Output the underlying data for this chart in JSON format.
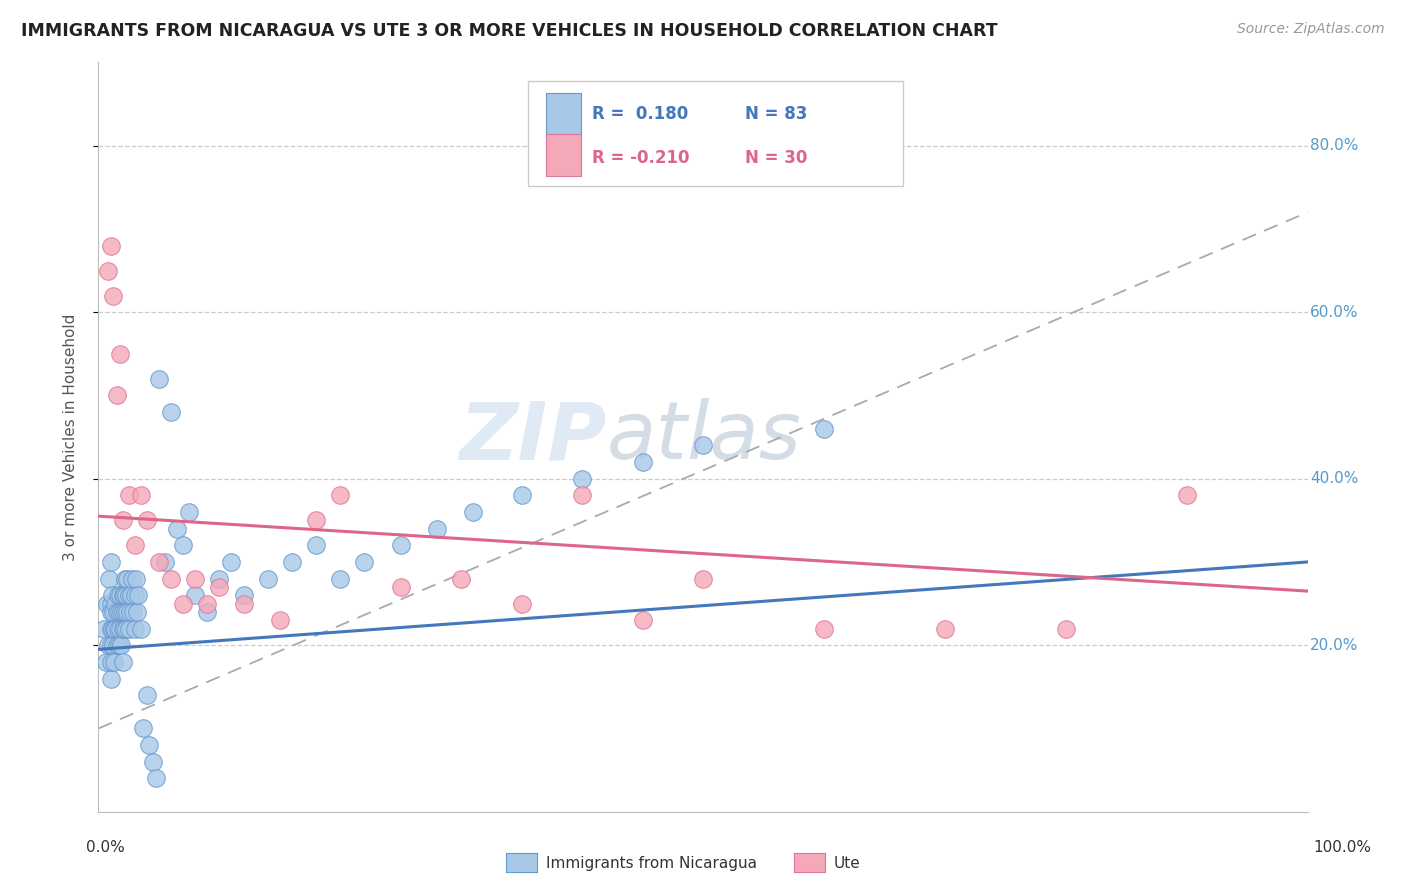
{
  "title": "IMMIGRANTS FROM NICARAGUA VS UTE 3 OR MORE VEHICLES IN HOUSEHOLD CORRELATION CHART",
  "source": "Source: ZipAtlas.com",
  "ylabel": "3 or more Vehicles in Household",
  "xlim": [
    0.0,
    1.0
  ],
  "ylim": [
    0.0,
    0.9
  ],
  "yticks": [
    0.2,
    0.4,
    0.6,
    0.8
  ],
  "ytick_labels": [
    "20.0%",
    "40.0%",
    "60.0%",
    "80.0%"
  ],
  "legend_r1": "R =  0.180",
  "legend_n1": "N = 83",
  "legend_r2": "R = -0.210",
  "legend_n2": "N = 30",
  "color_blue": "#a8c8e8",
  "color_pink": "#f4a8b8",
  "edge_blue": "#6699cc",
  "edge_pink": "#dd7799",
  "line_blue": "#4477bb",
  "line_pink": "#dd6688",
  "watermark_zip": "ZIP",
  "watermark_atlas": "atlas",
  "blue_scatter_x": [
    0.005,
    0.006,
    0.007,
    0.008,
    0.009,
    0.01,
    0.01,
    0.01,
    0.01,
    0.01,
    0.01,
    0.01,
    0.011,
    0.011,
    0.012,
    0.012,
    0.013,
    0.013,
    0.014,
    0.014,
    0.015,
    0.015,
    0.016,
    0.016,
    0.017,
    0.017,
    0.018,
    0.018,
    0.019,
    0.019,
    0.02,
    0.02,
    0.02,
    0.02,
    0.021,
    0.021,
    0.022,
    0.022,
    0.023,
    0.023,
    0.024,
    0.024,
    0.025,
    0.025,
    0.026,
    0.027,
    0.028,
    0.029,
    0.03,
    0.03,
    0.031,
    0.032,
    0.033,
    0.035,
    0.037,
    0.04,
    0.042,
    0.045,
    0.048,
    0.05,
    0.055,
    0.06,
    0.065,
    0.07,
    0.075,
    0.08,
    0.09,
    0.1,
    0.11,
    0.12,
    0.14,
    0.16,
    0.18,
    0.2,
    0.22,
    0.25,
    0.28,
    0.31,
    0.35,
    0.4,
    0.45,
    0.5,
    0.6
  ],
  "blue_scatter_y": [
    0.22,
    0.18,
    0.25,
    0.2,
    0.28,
    0.16,
    0.22,
    0.25,
    0.3,
    0.18,
    0.2,
    0.24,
    0.22,
    0.26,
    0.24,
    0.2,
    0.22,
    0.18,
    0.25,
    0.22,
    0.24,
    0.2,
    0.26,
    0.22,
    0.24,
    0.2,
    0.26,
    0.22,
    0.24,
    0.2,
    0.26,
    0.22,
    0.18,
    0.24,
    0.26,
    0.22,
    0.28,
    0.24,
    0.26,
    0.22,
    0.28,
    0.24,
    0.26,
    0.22,
    0.24,
    0.26,
    0.28,
    0.24,
    0.26,
    0.22,
    0.28,
    0.24,
    0.26,
    0.22,
    0.1,
    0.14,
    0.08,
    0.06,
    0.04,
    0.52,
    0.3,
    0.48,
    0.34,
    0.32,
    0.36,
    0.26,
    0.24,
    0.28,
    0.3,
    0.26,
    0.28,
    0.3,
    0.32,
    0.28,
    0.3,
    0.32,
    0.34,
    0.36,
    0.38,
    0.4,
    0.42,
    0.44,
    0.46
  ],
  "pink_scatter_x": [
    0.008,
    0.01,
    0.012,
    0.015,
    0.018,
    0.02,
    0.025,
    0.03,
    0.035,
    0.04,
    0.05,
    0.06,
    0.07,
    0.08,
    0.09,
    0.1,
    0.12,
    0.15,
    0.18,
    0.2,
    0.25,
    0.3,
    0.35,
    0.4,
    0.45,
    0.5,
    0.6,
    0.7,
    0.8,
    0.9
  ],
  "pink_scatter_y": [
    0.65,
    0.68,
    0.62,
    0.5,
    0.55,
    0.35,
    0.38,
    0.32,
    0.38,
    0.35,
    0.3,
    0.28,
    0.25,
    0.28,
    0.25,
    0.27,
    0.25,
    0.23,
    0.35,
    0.38,
    0.27,
    0.28,
    0.25,
    0.38,
    0.23,
    0.28,
    0.22,
    0.22,
    0.22,
    0.38
  ],
  "blue_line_y_start": 0.195,
  "blue_line_y_end": 0.3,
  "pink_line_y_start": 0.355,
  "pink_line_y_end": 0.265,
  "dash_line_y_start": 0.1,
  "dash_line_y_end": 0.72
}
